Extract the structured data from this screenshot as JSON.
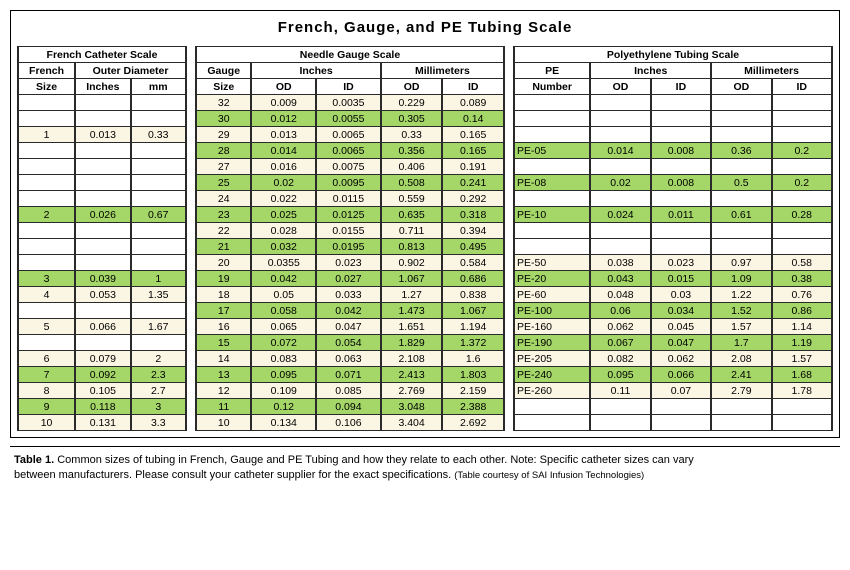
{
  "title": "French, Gauge, and PE Tubing Scale",
  "colors": {
    "green": "#a4d668",
    "cream": "#fbf6e3",
    "white": "#ffffff",
    "border": "#2a2a2a"
  },
  "french": {
    "panel_title": "French Catheter Scale",
    "header1": {
      "c1": "French",
      "c2": "Outer Diameter"
    },
    "header2": {
      "c1": "Size",
      "c2": "Inches",
      "c3": "mm"
    },
    "col_widths_pct": [
      34,
      33,
      33
    ],
    "rows": [
      {
        "type": "empty",
        "vals": [
          "",
          "",
          ""
        ]
      },
      {
        "type": "empty",
        "vals": [
          "",
          "",
          ""
        ]
      },
      {
        "type": "data",
        "vals": [
          "1",
          "0.013",
          "0.33"
        ]
      },
      {
        "type": "empty",
        "vals": [
          "",
          "",
          ""
        ]
      },
      {
        "type": "empty",
        "vals": [
          "",
          "",
          ""
        ]
      },
      {
        "type": "empty",
        "vals": [
          "",
          "",
          ""
        ]
      },
      {
        "type": "empty",
        "vals": [
          "",
          "",
          ""
        ]
      },
      {
        "type": "green",
        "vals": [
          "2",
          "0.026",
          "0.67"
        ]
      },
      {
        "type": "empty",
        "vals": [
          "",
          "",
          ""
        ]
      },
      {
        "type": "empty",
        "vals": [
          "",
          "",
          ""
        ]
      },
      {
        "type": "empty",
        "vals": [
          "",
          "",
          ""
        ]
      },
      {
        "type": "green",
        "vals": [
          "3",
          "0.039",
          "1"
        ]
      },
      {
        "type": "data",
        "vals": [
          "4",
          "0.053",
          "1.35"
        ]
      },
      {
        "type": "empty",
        "vals": [
          "",
          "",
          ""
        ]
      },
      {
        "type": "data",
        "vals": [
          "5",
          "0.066",
          "1.67"
        ]
      },
      {
        "type": "empty",
        "vals": [
          "",
          "",
          ""
        ]
      },
      {
        "type": "data",
        "vals": [
          "6",
          "0.079",
          "2"
        ]
      },
      {
        "type": "green",
        "vals": [
          "7",
          "0.092",
          "2.3"
        ]
      },
      {
        "type": "data",
        "vals": [
          "8",
          "0.105",
          "2.7"
        ]
      },
      {
        "type": "green",
        "vals": [
          "9",
          "0.118",
          "3"
        ]
      },
      {
        "type": "data",
        "vals": [
          "10",
          "0.131",
          "3.3"
        ]
      }
    ]
  },
  "needle": {
    "panel_title": "Needle Gauge Scale",
    "header1": {
      "c1": "Gauge",
      "c2": "Inches",
      "c3": "Millimeters"
    },
    "header2": {
      "c1": "Size",
      "c2": "OD",
      "c3": "ID",
      "c4": "OD",
      "c5": "ID"
    },
    "col_widths_pct": [
      18,
      21,
      21,
      20,
      20
    ],
    "rows": [
      {
        "type": "data",
        "vals": [
          "32",
          "0.009",
          "0.0035",
          "0.229",
          "0.089"
        ]
      },
      {
        "type": "green",
        "vals": [
          "30",
          "0.012",
          "0.0055",
          "0.305",
          "0.14"
        ]
      },
      {
        "type": "data",
        "vals": [
          "29",
          "0.013",
          "0.0065",
          "0.33",
          "0.165"
        ]
      },
      {
        "type": "green",
        "vals": [
          "28",
          "0.014",
          "0.0065",
          "0.356",
          "0.165"
        ]
      },
      {
        "type": "data",
        "vals": [
          "27",
          "0.016",
          "0.0075",
          "0.406",
          "0.191"
        ]
      },
      {
        "type": "green",
        "vals": [
          "25",
          "0.02",
          "0.0095",
          "0.508",
          "0.241"
        ]
      },
      {
        "type": "data",
        "vals": [
          "24",
          "0.022",
          "0.0115",
          "0.559",
          "0.292"
        ]
      },
      {
        "type": "green",
        "vals": [
          "23",
          "0.025",
          "0.0125",
          "0.635",
          "0.318"
        ]
      },
      {
        "type": "data",
        "vals": [
          "22",
          "0.028",
          "0.0155",
          "0.711",
          "0.394"
        ]
      },
      {
        "type": "green",
        "vals": [
          "21",
          "0.032",
          "0.0195",
          "0.813",
          "0.495"
        ]
      },
      {
        "type": "data",
        "vals": [
          "20",
          "0.0355",
          "0.023",
          "0.902",
          "0.584"
        ]
      },
      {
        "type": "green",
        "vals": [
          "19",
          "0.042",
          "0.027",
          "1.067",
          "0.686"
        ]
      },
      {
        "type": "data",
        "vals": [
          "18",
          "0.05",
          "0.033",
          "1.27",
          "0.838"
        ]
      },
      {
        "type": "green",
        "vals": [
          "17",
          "0.058",
          "0.042",
          "1.473",
          "1.067"
        ]
      },
      {
        "type": "data",
        "vals": [
          "16",
          "0.065",
          "0.047",
          "1.651",
          "1.194"
        ]
      },
      {
        "type": "green",
        "vals": [
          "15",
          "0.072",
          "0.054",
          "1.829",
          "1.372"
        ]
      },
      {
        "type": "data",
        "vals": [
          "14",
          "0.083",
          "0.063",
          "2.108",
          "1.6"
        ]
      },
      {
        "type": "green",
        "vals": [
          "13",
          "0.095",
          "0.071",
          "2.413",
          "1.803"
        ]
      },
      {
        "type": "data",
        "vals": [
          "12",
          "0.109",
          "0.085",
          "2.769",
          "2.159"
        ]
      },
      {
        "type": "green",
        "vals": [
          "11",
          "0.12",
          "0.094",
          "3.048",
          "2.388"
        ]
      },
      {
        "type": "data",
        "vals": [
          "10",
          "0.134",
          "0.106",
          "3.404",
          "2.692"
        ]
      }
    ]
  },
  "pe": {
    "panel_title": "Polyethylene Tubing Scale",
    "header1": {
      "c1": "PE",
      "c2": "Inches",
      "c3": "Millimeters"
    },
    "header2": {
      "c1": "Number",
      "c2": "OD",
      "c3": "ID",
      "c4": "OD",
      "c5": "ID"
    },
    "col_widths_pct": [
      24,
      19,
      19,
      19,
      19
    ],
    "rows": [
      {
        "type": "empty",
        "vals": [
          "",
          "",
          "",
          "",
          ""
        ]
      },
      {
        "type": "empty",
        "vals": [
          "",
          "",
          "",
          "",
          ""
        ]
      },
      {
        "type": "empty",
        "vals": [
          "",
          "",
          "",
          "",
          ""
        ]
      },
      {
        "type": "green",
        "vals": [
          "PE-05",
          "0.014",
          "0.008",
          "0.36",
          "0.2"
        ]
      },
      {
        "type": "empty",
        "vals": [
          "",
          "",
          "",
          "",
          ""
        ]
      },
      {
        "type": "green",
        "vals": [
          "PE-08",
          "0.02",
          "0.008",
          "0.5",
          "0.2"
        ]
      },
      {
        "type": "empty",
        "vals": [
          "",
          "",
          "",
          "",
          ""
        ]
      },
      {
        "type": "green",
        "vals": [
          "PE-10",
          "0.024",
          "0.011",
          "0.61",
          "0.28"
        ]
      },
      {
        "type": "empty",
        "vals": [
          "",
          "",
          "",
          "",
          ""
        ]
      },
      {
        "type": "empty",
        "vals": [
          "",
          "",
          "",
          "",
          ""
        ]
      },
      {
        "type": "data",
        "vals": [
          "PE-50",
          "0.038",
          "0.023",
          "0.97",
          "0.58"
        ]
      },
      {
        "type": "green",
        "vals": [
          "PE-20",
          "0.043",
          "0.015",
          "1.09",
          "0.38"
        ]
      },
      {
        "type": "data",
        "vals": [
          "PE-60",
          "0.048",
          "0.03",
          "1.22",
          "0.76"
        ]
      },
      {
        "type": "green",
        "vals": [
          "PE-100",
          "0.06",
          "0.034",
          "1.52",
          "0.86"
        ]
      },
      {
        "type": "data",
        "vals": [
          "PE-160",
          "0.062",
          "0.045",
          "1.57",
          "1.14"
        ]
      },
      {
        "type": "green",
        "vals": [
          "PE-190",
          "0.067",
          "0.047",
          "1.7",
          "1.19"
        ]
      },
      {
        "type": "data",
        "vals": [
          "PE-205",
          "0.082",
          "0.062",
          "2.08",
          "1.57"
        ]
      },
      {
        "type": "green",
        "vals": [
          "PE-240",
          "0.095",
          "0.066",
          "2.41",
          "1.68"
        ]
      },
      {
        "type": "data",
        "vals": [
          "PE-260",
          "0.11",
          "0.07",
          "2.79",
          "1.78"
        ]
      },
      {
        "type": "empty",
        "vals": [
          "",
          "",
          "",
          "",
          ""
        ]
      },
      {
        "type": "empty",
        "vals": [
          "",
          "",
          "",
          "",
          ""
        ]
      }
    ]
  },
  "caption": {
    "label": "Table 1.",
    "body1": "Common sizes of tubing in French, Gauge and PE Tubing and how they relate to each other. Note: Specific catheter sizes can vary",
    "body2": "between manufacturers. Please consult your catheter supplier for the exact specifications.",
    "credit": "(Table courtesy of SAI Infusion Technologies)"
  }
}
